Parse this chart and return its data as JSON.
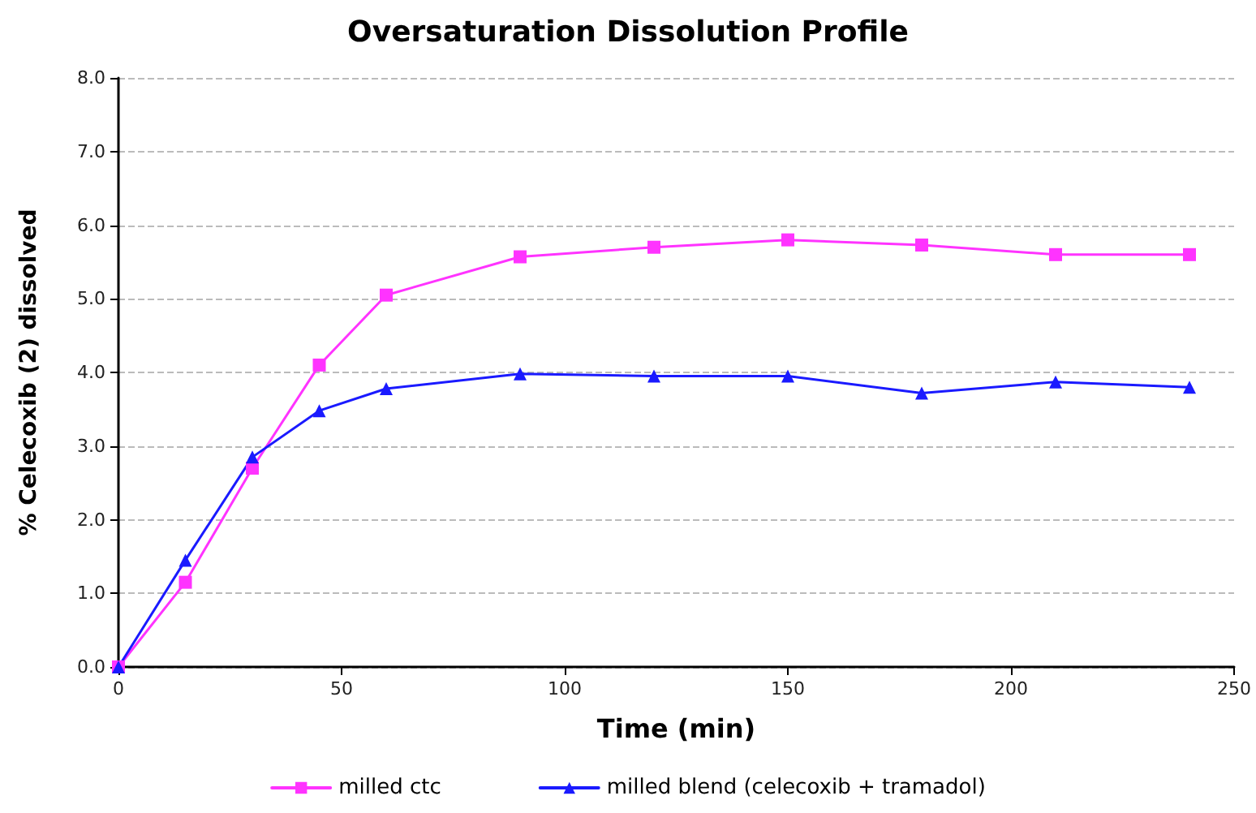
{
  "chart_data": {
    "type": "line",
    "title": "Oversaturation Dissolution Profile",
    "xlabel": "Time (min)",
    "ylabel": "% Celecoxib (2) dissolved",
    "x": [
      0,
      15,
      30,
      45,
      60,
      90,
      120,
      150,
      180,
      210,
      240
    ],
    "series": [
      {
        "name": "milled ctc",
        "color": "#ff33ff",
        "marker": "square",
        "values": [
          0,
          1.15,
          2.7,
          4.1,
          5.05,
          5.57,
          5.7,
          5.8,
          5.73,
          5.6,
          5.6
        ]
      },
      {
        "name": "milled blend (celecoxib + tramadol)",
        "color": "#1a1aff",
        "marker": "triangle",
        "values": [
          0,
          1.45,
          2.85,
          3.48,
          3.78,
          3.98,
          3.95,
          3.95,
          3.72,
          3.87,
          3.8
        ]
      }
    ],
    "xlim": [
      0,
      250
    ],
    "xticks": [
      0,
      50,
      100,
      150,
      200,
      250
    ],
    "ylim": [
      0,
      8
    ],
    "yticks": [
      {
        "value": 0,
        "label": "0.0"
      },
      {
        "value": 1,
        "label": "1.0"
      },
      {
        "value": 2,
        "label": "2.0"
      },
      {
        "value": 3,
        "label": "3.0"
      },
      {
        "value": 4,
        "label": "4.0"
      },
      {
        "value": 5,
        "label": "5.0"
      },
      {
        "value": 6,
        "label": "6.0"
      },
      {
        "value": 7,
        "label": "7.0"
      },
      {
        "value": 8,
        "label": "8.0"
      }
    ],
    "grid": "y",
    "legend": "bottom",
    "line_style": "solid"
  }
}
